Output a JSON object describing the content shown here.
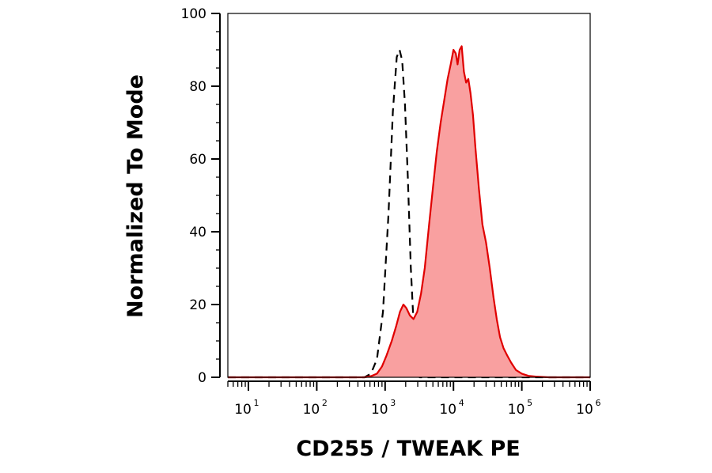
{
  "chart_data": {
    "type": "area",
    "title": "",
    "xlabel": "CD255 / TWEAK PE",
    "ylabel": "Normalized To Mode",
    "x_scale": "log",
    "xlim": [
      5,
      1000000
    ],
    "ylim": [
      0,
      100
    ],
    "y_ticks": [
      0,
      20,
      40,
      60,
      80,
      100
    ],
    "x_ticks": [
      {
        "base": "10",
        "exp": "1",
        "value": 10
      },
      {
        "base": "10",
        "exp": "2",
        "value": 100
      },
      {
        "base": "10",
        "exp": "3",
        "value": 1000
      },
      {
        "base": "10",
        "exp": "4",
        "value": 10000
      },
      {
        "base": "10",
        "exp": "5",
        "value": 100000
      },
      {
        "base": "10",
        "exp": "6",
        "value": 1000000
      }
    ],
    "legend": "none",
    "grid": false,
    "series": [
      {
        "style": "dashed-outline",
        "color": "#000000",
        "x": [
          5,
          500,
          620,
          760,
          930,
          1120,
          1300,
          1480,
          1630,
          1780,
          1950,
          2150,
          2380,
          2650,
          2900,
          3200,
          4000,
          1000000
        ],
        "y": [
          0,
          0,
          1,
          5,
          18,
          45,
          73,
          88,
          90,
          87,
          75,
          55,
          30,
          12,
          4,
          0,
          0,
          0
        ]
      },
      {
        "style": "filled",
        "color": "#e00000",
        "fill": "#f9a0a0",
        "x": [
          5,
          500,
          620,
          760,
          900,
          1050,
          1250,
          1450,
          1650,
          1850,
          2050,
          2300,
          2600,
          2950,
          3350,
          3800,
          4400,
          5000,
          5700,
          6500,
          7300,
          8200,
          9100,
          10000,
          10800,
          11500,
          12300,
          13200,
          14200,
          15300,
          16500,
          17800,
          19300,
          21000,
          23500,
          26500,
          30000,
          34000,
          38500,
          43000,
          48000,
          54000,
          61000,
          70000,
          82000,
          100000,
          125000,
          160000,
          250000,
          1000000
        ],
        "y": [
          0,
          0,
          0.3,
          1,
          3,
          6,
          10,
          14,
          18,
          20,
          19,
          17,
          16,
          18,
          23,
          30,
          42,
          52,
          62,
          70,
          76,
          82,
          86,
          90,
          89,
          86,
          90,
          91,
          84,
          81,
          82,
          78,
          72,
          63,
          52,
          42,
          37,
          30,
          22,
          16,
          11,
          8,
          6,
          4,
          2,
          1,
          0.4,
          0.2,
          0,
          0
        ]
      }
    ]
  }
}
